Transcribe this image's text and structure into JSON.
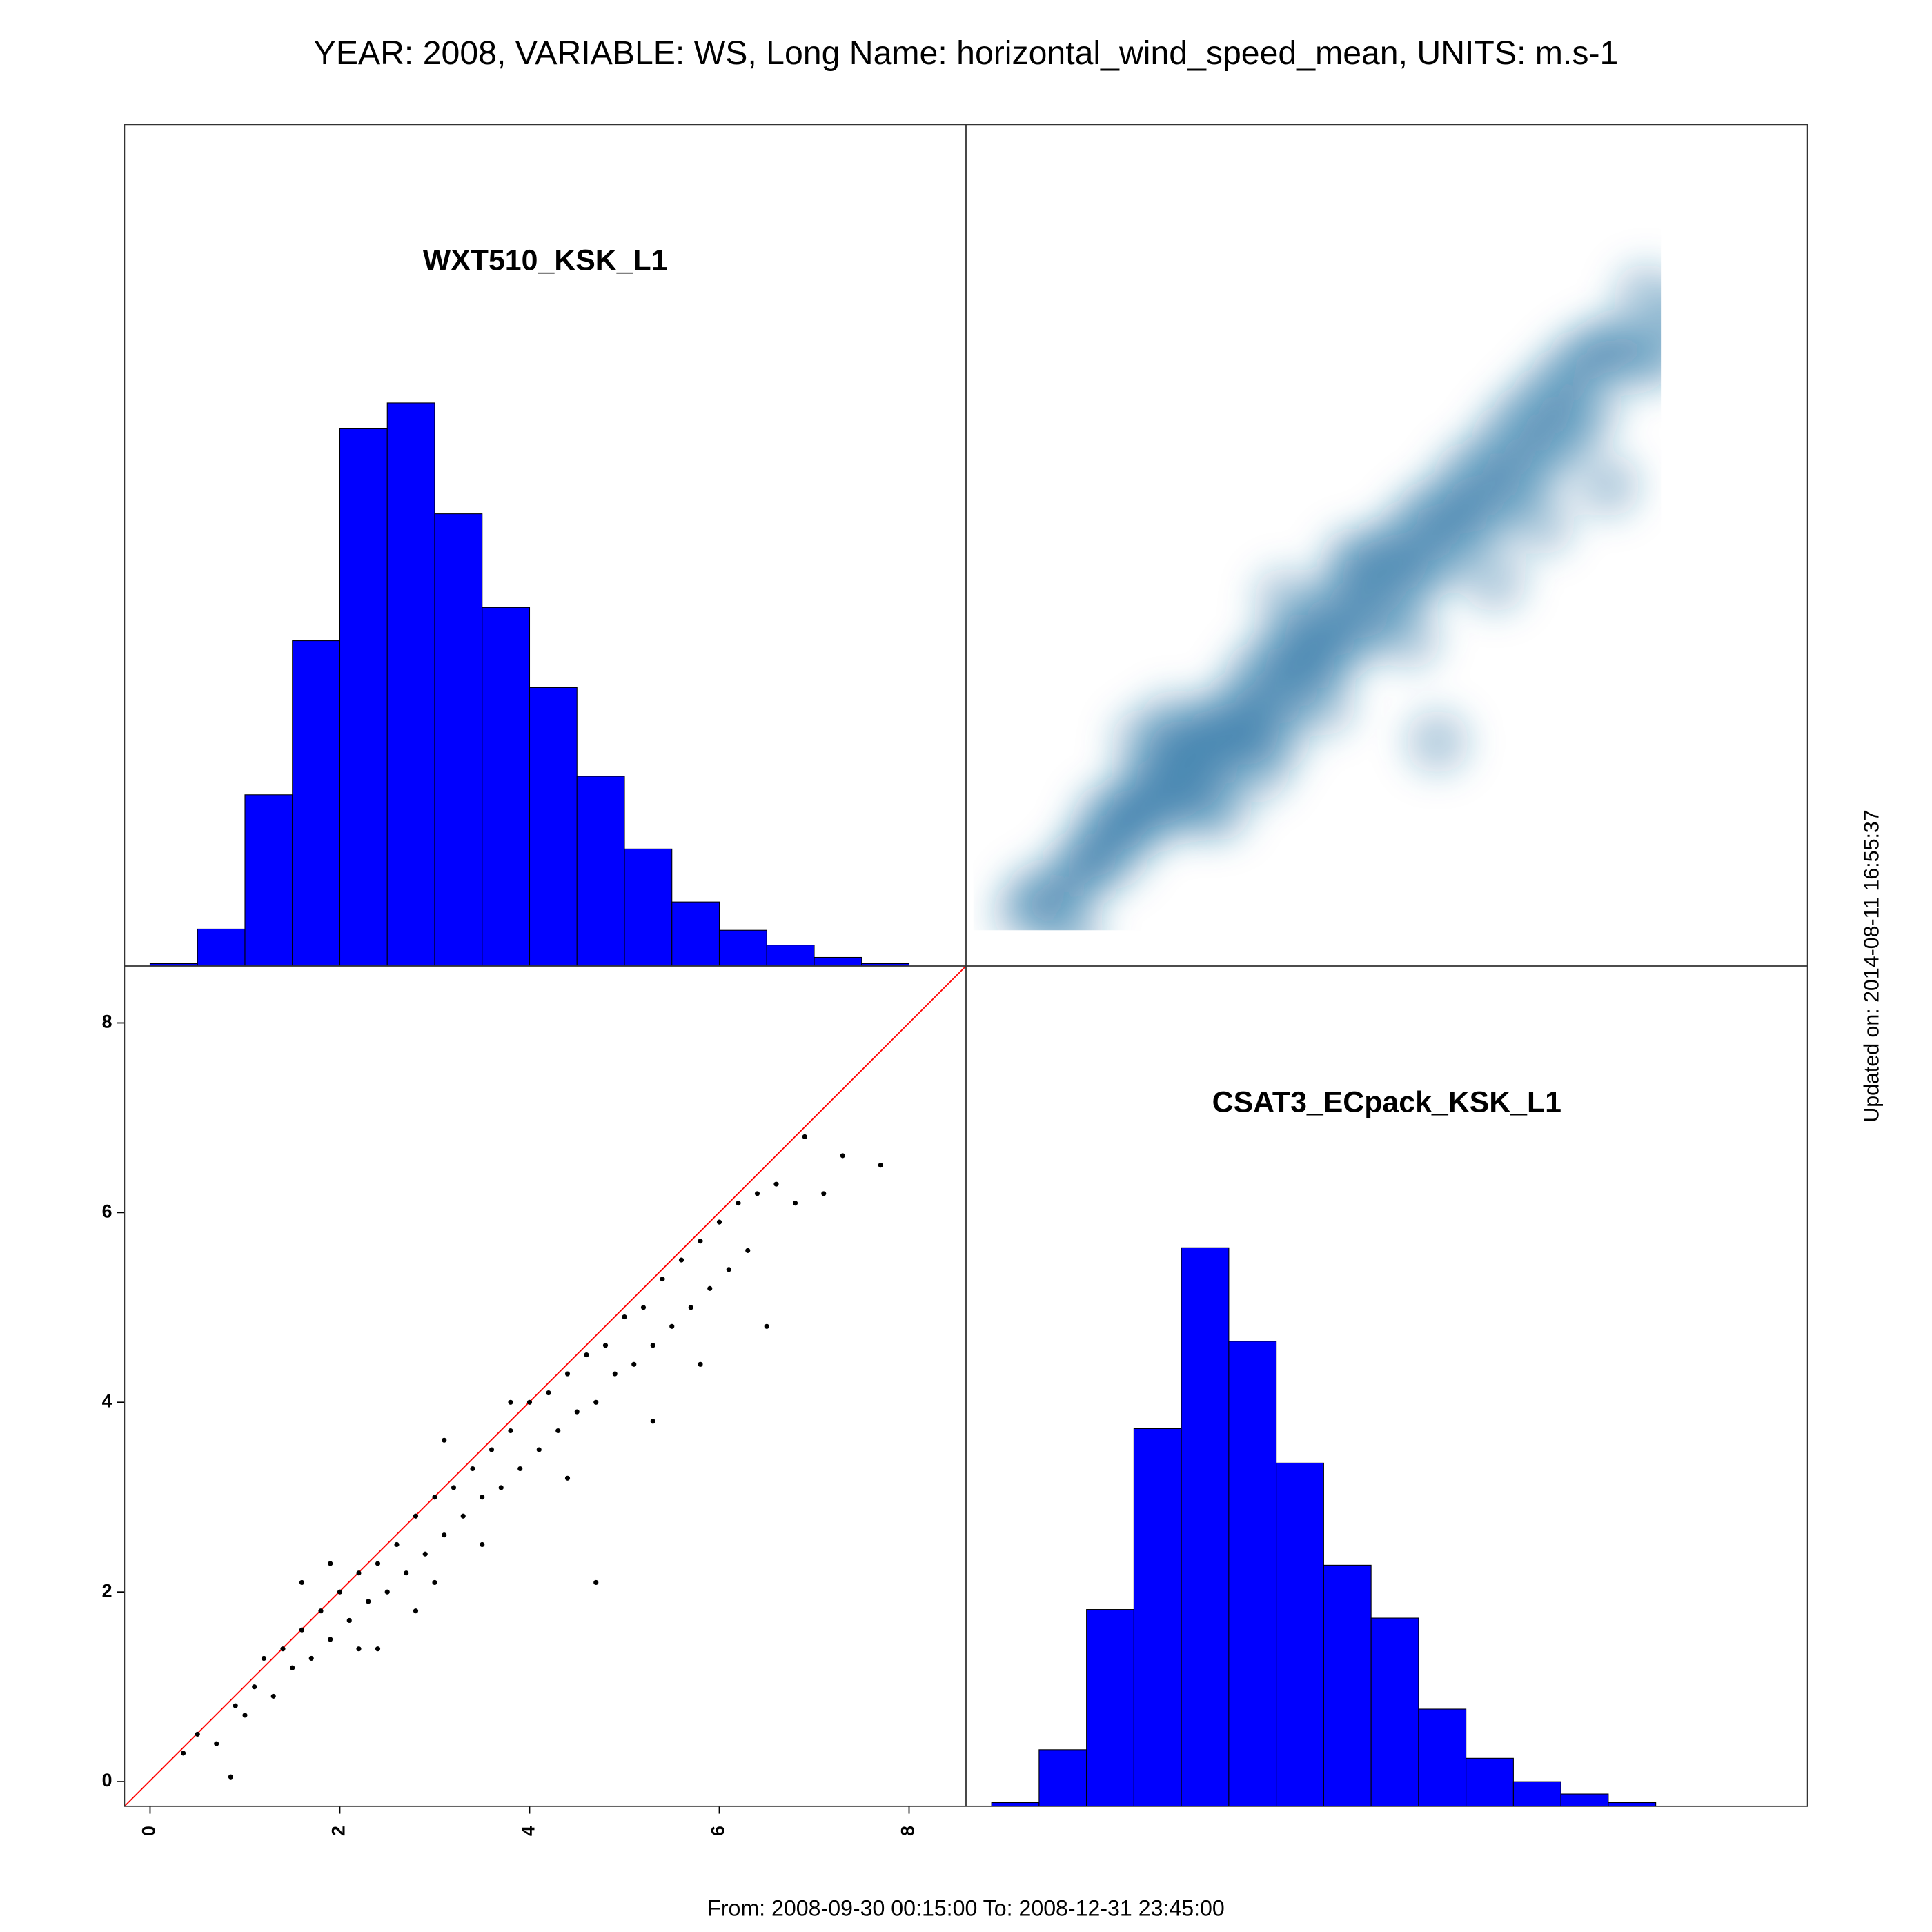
{
  "title": "YEAR: 2008, VARIABLE: WS, Long Name: horizontal_wind_speed_mean, UNITS: m.s-1",
  "footnote": "From: 2008-09-30 00:15:00 To: 2008-12-31 23:45:00",
  "updated": "Updated on: 2014-08-11 16:55:37",
  "chart_data": [
    {
      "type": "histogram",
      "title": "WXT510_KSK_L1",
      "color": "#0000ff",
      "bins": [
        0,
        0.5,
        1,
        1.5,
        2,
        2.5,
        3,
        3.5,
        4,
        4.5,
        5,
        5.5,
        6,
        6.5,
        7,
        7.5,
        8
      ],
      "values": [
        2,
        30,
        139,
        264,
        436,
        457,
        367,
        291,
        226,
        154,
        95,
        52,
        29,
        17,
        7,
        2
      ],
      "xlim": [
        -0.27,
        8.6
      ],
      "ylim": [
        0,
        683
      ]
    },
    {
      "type": "scatter",
      "color": "#000000",
      "line_color": "#ff0000",
      "x": [
        0.35,
        0.5,
        0.7,
        0.85,
        0.9,
        1.0,
        1.1,
        1.2,
        1.3,
        1.4,
        1.5,
        1.6,
        1.7,
        1.8,
        1.9,
        2.0,
        2.1,
        2.2,
        2.3,
        2.4,
        2.5,
        2.6,
        2.7,
        2.8,
        2.9,
        3.0,
        3.1,
        3.2,
        3.3,
        3.4,
        3.5,
        3.6,
        3.7,
        3.8,
        3.9,
        4.0,
        4.1,
        4.2,
        4.3,
        4.4,
        4.5,
        4.6,
        4.7,
        4.8,
        4.9,
        5.0,
        5.1,
        5.2,
        5.3,
        5.4,
        5.5,
        5.6,
        5.7,
        5.8,
        5.9,
        6.0,
        6.1,
        6.2,
        6.3,
        6.4,
        6.5,
        6.6,
        6.8,
        6.9,
        7.1,
        7.3,
        7.7,
        4.7,
        3.8,
        5.8,
        2.4,
        1.6,
        3.1,
        2.8,
        3.5,
        4.4,
        5.3,
        1.9,
        2.2,
        3.0
      ],
      "y": [
        0.3,
        0.5,
        0.4,
        0.05,
        0.8,
        0.7,
        1.0,
        1.3,
        0.9,
        1.4,
        1.2,
        1.6,
        1.3,
        1.8,
        1.5,
        2.0,
        1.7,
        2.2,
        1.9,
        2.3,
        2.0,
        2.5,
        2.2,
        2.8,
        2.4,
        3.0,
        2.6,
        3.1,
        2.8,
        3.3,
        3.0,
        3.5,
        3.1,
        3.7,
        3.3,
        4.0,
        3.5,
        4.1,
        3.7,
        4.3,
        3.9,
        4.5,
        4.0,
        4.6,
        4.3,
        4.9,
        4.4,
        5.0,
        4.6,
        5.3,
        4.8,
        5.5,
        5.0,
        5.7,
        5.2,
        5.9,
        5.4,
        6.1,
        5.6,
        6.2,
        4.8,
        6.3,
        6.1,
        6.8,
        6.2,
        6.6,
        6.5,
        2.1,
        4.0,
        4.4,
        1.4,
        2.1,
        3.6,
        1.8,
        2.5,
        3.2,
        3.8,
        2.3,
        1.4,
        2.1
      ],
      "xlim": [
        -0.27,
        8.6
      ],
      "ylim": [
        -0.26,
        8.6
      ],
      "xticks": [
        0,
        2,
        4,
        6,
        8
      ],
      "yticks": [
        0,
        2,
        4,
        6,
        8
      ]
    },
    {
      "type": "histogram",
      "title": "CSAT3_ECpack_KSK_L1",
      "color": "#0000ff",
      "bins": [
        0,
        0.5,
        1,
        1.5,
        2,
        2.5,
        3,
        3.5,
        4,
        4.5,
        5,
        5.5,
        6,
        6.5,
        7
      ],
      "values": [
        3,
        46,
        160,
        307,
        454,
        378,
        279,
        196,
        153,
        79,
        39,
        20,
        10,
        3
      ],
      "xlim": [
        -0.27,
        8.6
      ],
      "ylim": [
        0,
        683
      ]
    }
  ]
}
